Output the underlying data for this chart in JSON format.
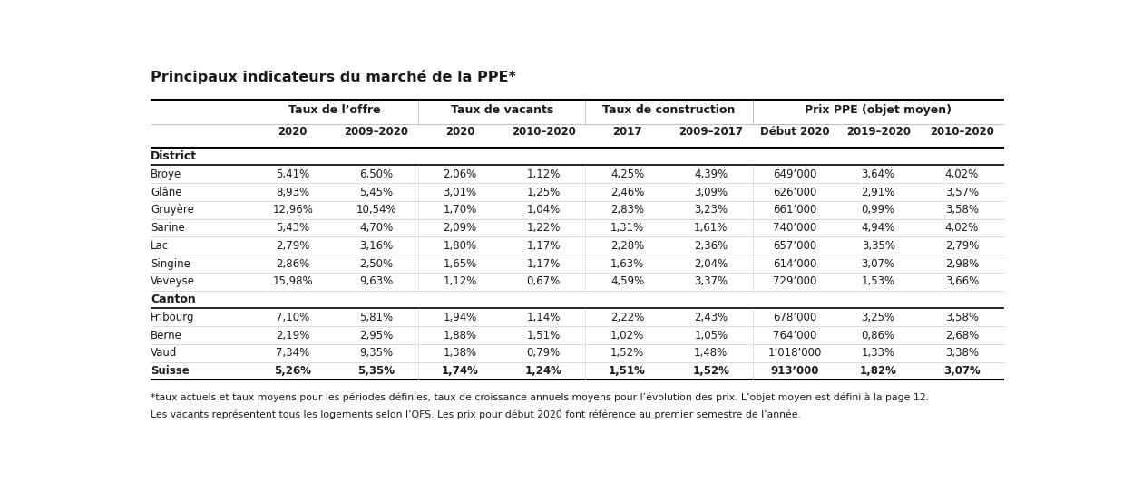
{
  "title": "Principaux indicateurs du marché de la PPE*",
  "groups": [
    {
      "label": "Taux de l’offre",
      "sub": [
        "2020",
        "2009–2020"
      ]
    },
    {
      "label": "Taux de vacants",
      "sub": [
        "2020",
        "2010–2020"
      ]
    },
    {
      "label": "Taux de construction",
      "sub": [
        "2017",
        "2009–2017"
      ]
    },
    {
      "label": "Prix PPE (objet moyen)",
      "sub": [
        "Début 2020",
        "2019–2020",
        "2010–2020"
      ]
    }
  ],
  "rows": [
    {
      "name": "District",
      "is_header": true,
      "bold": true,
      "values": []
    },
    {
      "name": "Broye",
      "is_header": false,
      "bold": false,
      "values": [
        "5,41%",
        "6,50%",
        "2,06%",
        "1,12%",
        "4,25%",
        "4,39%",
        "649’000",
        "3,64%",
        "4,02%"
      ]
    },
    {
      "name": "Glâne",
      "is_header": false,
      "bold": false,
      "values": [
        "8,93%",
        "5,45%",
        "3,01%",
        "1,25%",
        "2,46%",
        "3,09%",
        "626’000",
        "2,91%",
        "3,57%"
      ]
    },
    {
      "name": "Gruyère",
      "is_header": false,
      "bold": false,
      "values": [
        "12,96%",
        "10,54%",
        "1,70%",
        "1,04%",
        "2,83%",
        "3,23%",
        "661’000",
        "0,99%",
        "3,58%"
      ]
    },
    {
      "name": "Sarine",
      "is_header": false,
      "bold": false,
      "values": [
        "5,43%",
        "4,70%",
        "2,09%",
        "1,22%",
        "1,31%",
        "1,61%",
        "740’000",
        "4,94%",
        "4,02%"
      ]
    },
    {
      "name": "Lac",
      "is_header": false,
      "bold": false,
      "values": [
        "2,79%",
        "3,16%",
        "1,80%",
        "1,17%",
        "2,28%",
        "2,36%",
        "657’000",
        "3,35%",
        "2,79%"
      ]
    },
    {
      "name": "Singine",
      "is_header": false,
      "bold": false,
      "values": [
        "2,86%",
        "2,50%",
        "1,65%",
        "1,17%",
        "1,63%",
        "2,04%",
        "614’000",
        "3,07%",
        "2,98%"
      ]
    },
    {
      "name": "Veveyse",
      "is_header": false,
      "bold": false,
      "values": [
        "15,98%",
        "9,63%",
        "1,12%",
        "0,67%",
        "4,59%",
        "3,37%",
        "729’000",
        "1,53%",
        "3,66%"
      ]
    },
    {
      "name": "Canton",
      "is_header": true,
      "bold": true,
      "values": []
    },
    {
      "name": "Fribourg",
      "is_header": false,
      "bold": false,
      "values": [
        "7,10%",
        "5,81%",
        "1,94%",
        "1,14%",
        "2,22%",
        "2,43%",
        "678’000",
        "3,25%",
        "3,58%"
      ]
    },
    {
      "name": "Berne",
      "is_header": false,
      "bold": false,
      "values": [
        "2,19%",
        "2,95%",
        "1,88%",
        "1,51%",
        "1,02%",
        "1,05%",
        "764’000",
        "0,86%",
        "2,68%"
      ]
    },
    {
      "name": "Vaud",
      "is_header": false,
      "bold": false,
      "values": [
        "7,34%",
        "9,35%",
        "1,38%",
        "0,79%",
        "1,52%",
        "1,48%",
        "1’018’000",
        "1,33%",
        "3,38%"
      ]
    },
    {
      "name": "Suisse",
      "is_header": false,
      "bold": true,
      "values": [
        "5,26%",
        "5,35%",
        "1,74%",
        "1,24%",
        "1,51%",
        "1,52%",
        "913’000",
        "1,82%",
        "3,07%"
      ]
    }
  ],
  "footnote1": "*taux actuels et taux moyens pour les périodes définies, taux de croissance annuels moyens pour l’évolution des prix. L’objet moyen est défini à la page 12.",
  "footnote2": "Les vacants représentent tous les logements selon l’OFS. Les prix pour début 2020 font référence au premier semestre de l’année.",
  "bg_color": "#ffffff",
  "text_color": "#1a1a1a"
}
